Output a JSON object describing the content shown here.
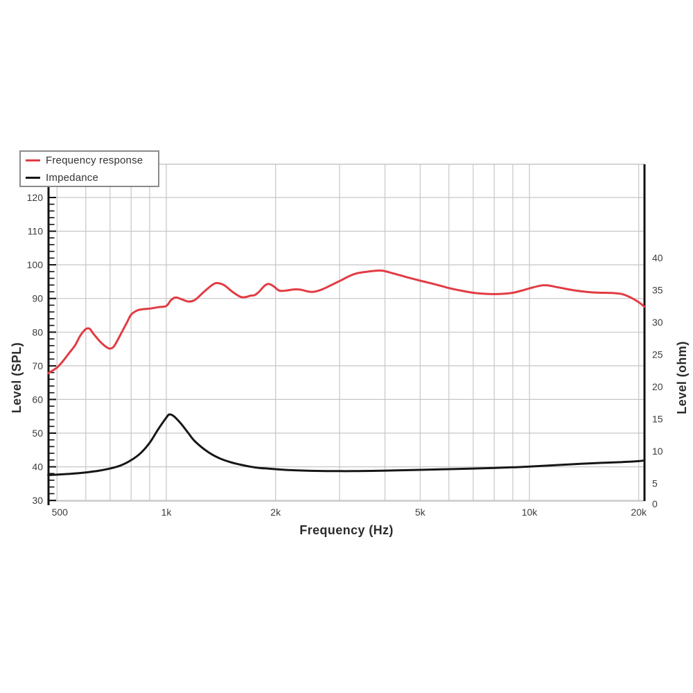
{
  "chart_data": {
    "type": "line",
    "x_scale": "log",
    "title": "",
    "xlabel": "Frequency (Hz)",
    "ylabel_left": "Level (SPL)",
    "ylabel_right": "Level (ohm)",
    "x_axis": {
      "tick_labels": [
        {
          "label": "500",
          "f": 500
        },
        {
          "label": "1k",
          "f": 1000
        },
        {
          "label": "2k",
          "f": 2000
        },
        {
          "label": "5k",
          "f": 5000
        },
        {
          "label": "10k",
          "f": 10000
        },
        {
          "label": "20k",
          "f": 20000
        }
      ],
      "gridline_freqs": [
        500,
        600,
        700,
        800,
        900,
        1000,
        2000,
        3000,
        4000,
        5000,
        6000,
        7000,
        8000,
        9000,
        10000,
        20000
      ],
      "range_hz": [
        473,
        20700
      ]
    },
    "left_axis": {
      "ticks": [
        120,
        110,
        100,
        90,
        80,
        70,
        60,
        50,
        40,
        30
      ],
      "minor_step_db": 2,
      "range": [
        30,
        130
      ]
    },
    "right_axis": {
      "ticks": [
        40,
        35,
        30,
        25,
        20,
        15,
        10,
        5,
        0
      ],
      "range": [
        0,
        45
      ]
    },
    "legend": [
      {
        "label": "Frequency response",
        "color": "#e23b43"
      },
      {
        "label": "Impedance",
        "color": "#161616"
      }
    ],
    "series": [
      {
        "name": "Frequency response",
        "axis": "left",
        "unit": "dB SPL",
        "color": "#e23b43",
        "points": [
          [
            473,
            67.8
          ],
          [
            500,
            69.5
          ],
          [
            520,
            71.5
          ],
          [
            540,
            73.8
          ],
          [
            560,
            76.0
          ],
          [
            580,
            79.0
          ],
          [
            600,
            80.9
          ],
          [
            615,
            81.0
          ],
          [
            630,
            79.5
          ],
          [
            660,
            77.0
          ],
          [
            690,
            75.3
          ],
          [
            705,
            75.2
          ],
          [
            720,
            76.0
          ],
          [
            750,
            79.5
          ],
          [
            780,
            83.0
          ],
          [
            800,
            85.2
          ],
          [
            830,
            86.4
          ],
          [
            860,
            86.8
          ],
          [
            900,
            87.0
          ],
          [
            950,
            87.4
          ],
          [
            1000,
            87.8
          ],
          [
            1030,
            89.5
          ],
          [
            1060,
            90.3
          ],
          [
            1100,
            89.8
          ],
          [
            1150,
            89.1
          ],
          [
            1200,
            89.6
          ],
          [
            1270,
            92.0
          ],
          [
            1350,
            94.3
          ],
          [
            1400,
            94.5
          ],
          [
            1450,
            93.8
          ],
          [
            1520,
            92.0
          ],
          [
            1600,
            90.5
          ],
          [
            1650,
            90.4
          ],
          [
            1700,
            90.8
          ],
          [
            1750,
            91.0
          ],
          [
            1800,
            92.0
          ],
          [
            1870,
            93.9
          ],
          [
            1920,
            94.3
          ],
          [
            1980,
            93.5
          ],
          [
            2050,
            92.3
          ],
          [
            2150,
            92.4
          ],
          [
            2250,
            92.7
          ],
          [
            2350,
            92.6
          ],
          [
            2450,
            92.1
          ],
          [
            2550,
            92.0
          ],
          [
            2700,
            92.8
          ],
          [
            3000,
            95.2
          ],
          [
            3300,
            97.3
          ],
          [
            3600,
            98.0
          ],
          [
            3900,
            98.3
          ],
          [
            4200,
            97.5
          ],
          [
            4600,
            96.3
          ],
          [
            5000,
            95.3
          ],
          [
            5500,
            94.2
          ],
          [
            6000,
            93.1
          ],
          [
            6500,
            92.3
          ],
          [
            7000,
            91.7
          ],
          [
            7500,
            91.4
          ],
          [
            8000,
            91.3
          ],
          [
            8500,
            91.4
          ],
          [
            9000,
            91.7
          ],
          [
            9500,
            92.3
          ],
          [
            10000,
            93.0
          ],
          [
            10700,
            93.8
          ],
          [
            11200,
            93.9
          ],
          [
            12000,
            93.3
          ],
          [
            13000,
            92.6
          ],
          [
            14000,
            92.1
          ],
          [
            15000,
            91.8
          ],
          [
            16000,
            91.7
          ],
          [
            17000,
            91.6
          ],
          [
            18000,
            91.3
          ],
          [
            19000,
            90.3
          ],
          [
            20000,
            88.9
          ],
          [
            20700,
            87.6
          ]
        ]
      },
      {
        "name": "Impedance",
        "axis": "right",
        "unit": "ohm",
        "color": "#161616",
        "points": [
          [
            473,
            6.3
          ],
          [
            500,
            6.35
          ],
          [
            550,
            6.5
          ],
          [
            600,
            6.7
          ],
          [
            650,
            6.95
          ],
          [
            700,
            7.3
          ],
          [
            750,
            7.8
          ],
          [
            800,
            8.6
          ],
          [
            850,
            9.7
          ],
          [
            900,
            11.3
          ],
          [
            950,
            13.4
          ],
          [
            1000,
            15.2
          ],
          [
            1020,
            15.7
          ],
          [
            1050,
            15.4
          ],
          [
            1100,
            14.2
          ],
          [
            1150,
            12.8
          ],
          [
            1200,
            11.5
          ],
          [
            1300,
            9.9
          ],
          [
            1400,
            8.9
          ],
          [
            1500,
            8.3
          ],
          [
            1600,
            7.9
          ],
          [
            1700,
            7.6
          ],
          [
            1800,
            7.4
          ],
          [
            1900,
            7.3
          ],
          [
            2000,
            7.2
          ],
          [
            2200,
            7.05
          ],
          [
            2500,
            6.95
          ],
          [
            3000,
            6.9
          ],
          [
            3500,
            6.92
          ],
          [
            4000,
            6.98
          ],
          [
            5000,
            7.1
          ],
          [
            6000,
            7.2
          ],
          [
            7000,
            7.3
          ],
          [
            8000,
            7.4
          ],
          [
            9000,
            7.5
          ],
          [
            10000,
            7.6
          ],
          [
            12000,
            7.85
          ],
          [
            14000,
            8.05
          ],
          [
            16000,
            8.2
          ],
          [
            18000,
            8.3
          ],
          [
            20000,
            8.45
          ],
          [
            20700,
            8.55
          ]
        ]
      }
    ],
    "colors": {
      "grid": "#c6c6c6",
      "axis": "#111111",
      "tick_text": "#3c3c3c",
      "title_text": "#2b2b2b",
      "legend_border": "#8a8a8a"
    }
  }
}
